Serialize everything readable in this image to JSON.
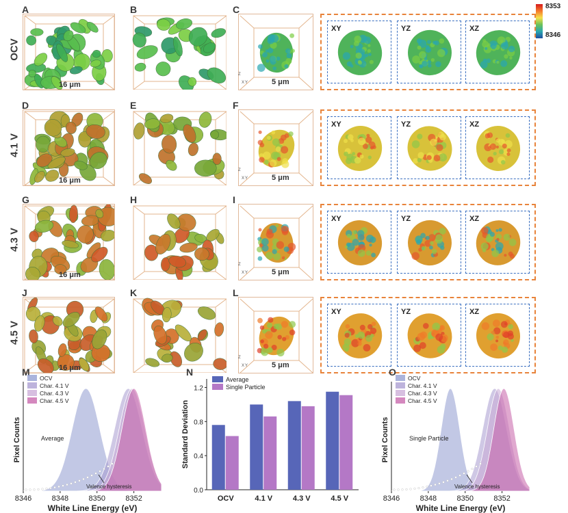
{
  "panel_letters": [
    "A",
    "B",
    "C",
    "D",
    "E",
    "F",
    "G",
    "H",
    "I",
    "J",
    "K",
    "L",
    "M",
    "N",
    "O"
  ],
  "rows": [
    {
      "label": "OCV",
      "scale_left": "16 μm",
      "scale_particle": "5 μm"
    },
    {
      "label": "4.1 V",
      "scale_left": "16 μm",
      "scale_particle": "5 μm"
    },
    {
      "label": "4.3 V",
      "scale_left": "16 μm",
      "scale_particle": "5 μm"
    },
    {
      "label": "4.5 V",
      "scale_left": "16 μm",
      "scale_particle": "5 μm"
    }
  ],
  "slice_labels": [
    "XY",
    "YZ",
    "XZ"
  ],
  "colorbar": {
    "max": "8353",
    "min": "8346",
    "colors": [
      "#d7191c",
      "#f57a2c",
      "#f7e04a",
      "#6cc25a",
      "#2aa7b0",
      "#1f4fa0"
    ]
  },
  "axis_letters": {
    "z": "Z",
    "x": "X",
    "y": "Y"
  },
  "chart_data": [
    {
      "type": "area",
      "panel": "M",
      "title": "",
      "annotation": "Average",
      "annotation2": "Valence hysteresis",
      "xlabel": "White Line Energy (eV)",
      "ylabel": "Pixel Counts",
      "xlim": [
        8346,
        8353.5
      ],
      "xticks": [
        8346,
        8348,
        8350,
        8352
      ],
      "series": [
        {
          "name": "OCV",
          "color": "#8f9bd0",
          "peak": 8349.4,
          "width": 0.75
        },
        {
          "name": "Char. 4.1 V",
          "color": "#a79ad0",
          "peak": 8351.7,
          "width": 0.75
        },
        {
          "name": "Char. 4.3 V",
          "color": "#c9a9d6",
          "peak": 8351.9,
          "width": 0.7
        },
        {
          "name": "Char. 4.5 V",
          "color": "#c660a8",
          "peak": 8352.0,
          "width": 0.65
        }
      ]
    },
    {
      "type": "bar",
      "panel": "N",
      "xlabel": "",
      "ylabel": "Standard Deviation",
      "categories": [
        "OCV",
        "4.1 V",
        "4.3 V",
        "4.5 V"
      ],
      "ylim": [
        0,
        1.3
      ],
      "yticks": [
        0.0,
        0.4,
        0.8,
        1.2
      ],
      "series": [
        {
          "name": "Average",
          "color": "#5766b8",
          "values": [
            0.76,
            1.0,
            1.04,
            1.15
          ]
        },
        {
          "name": "Single Particle",
          "color": "#b478c6",
          "values": [
            0.63,
            0.86,
            0.98,
            1.11
          ]
        }
      ]
    },
    {
      "type": "area",
      "panel": "O",
      "title": "",
      "annotation": "Single Particle",
      "annotation2": "Valence hysteresis",
      "xlabel": "White Line Energy (eV)",
      "ylabel": "Pixel Counts",
      "xlim": [
        8346,
        8353.5
      ],
      "xticks": [
        8346,
        8348,
        8350,
        8352
      ],
      "series": [
        {
          "name": "OCV",
          "color": "#8f9bd0",
          "peak": 8349.2,
          "width": 0.5
        },
        {
          "name": "Char. 4.1 V",
          "color": "#a79ad0",
          "peak": 8351.6,
          "width": 0.65
        },
        {
          "name": "Char. 4.3 V",
          "color": "#c9a9d6",
          "peak": 8351.8,
          "width": 0.6
        },
        {
          "name": "Char. 4.5 V",
          "color": "#c660a8",
          "peak": 8352.1,
          "width": 0.55
        }
      ]
    }
  ]
}
